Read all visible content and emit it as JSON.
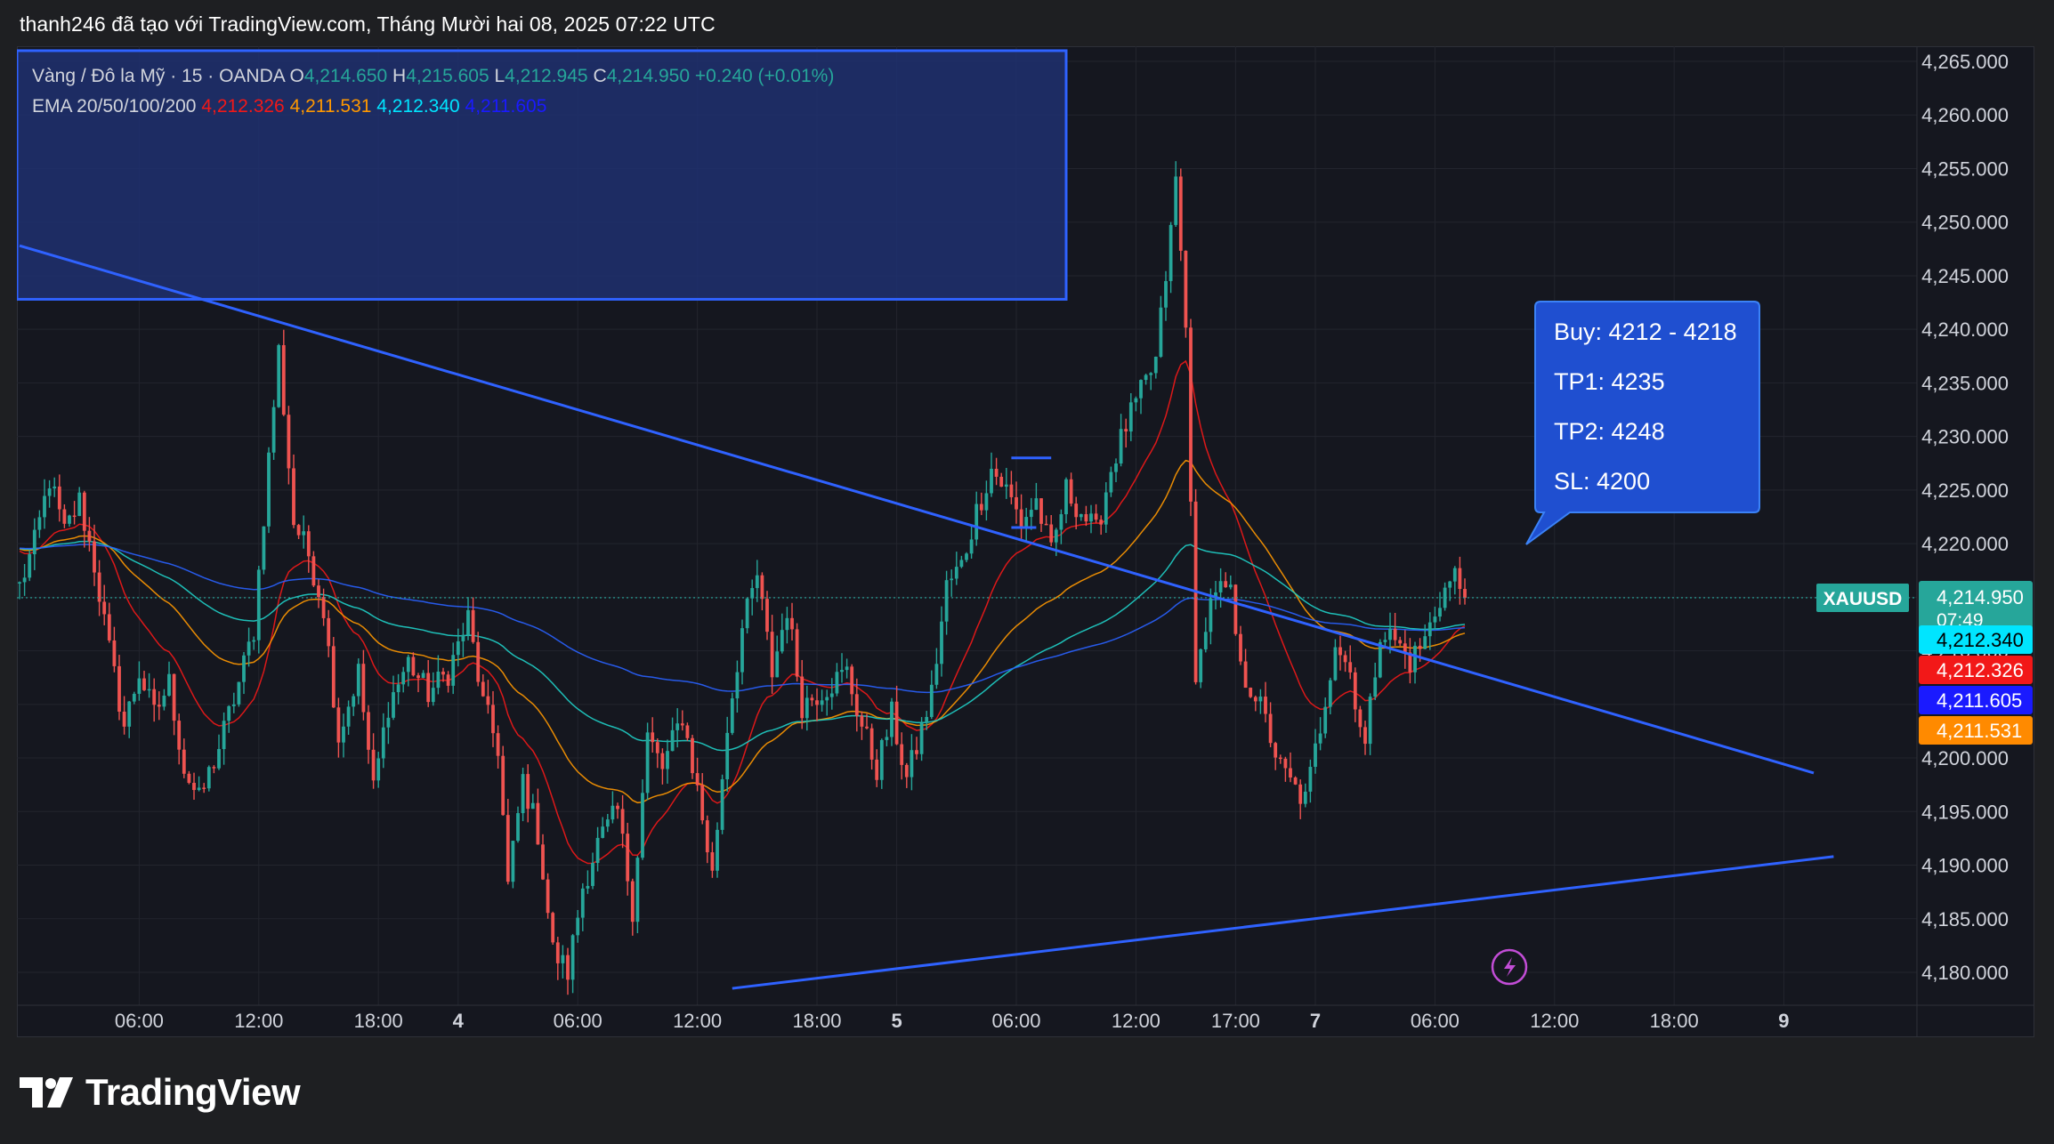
{
  "header": {
    "credit": "thanh246 đã tạo với TradingView.com, Tháng Mười hai 08, 2025 07:22 UTC"
  },
  "legend": {
    "symbol_desc": "Vàng / Đô la Mỹ · 15 · OANDA",
    "o_label": "O",
    "o_value": "4,214.650",
    "h_label": "H",
    "h_value": "4,215.605",
    "l_label": "L",
    "l_value": "4,212.945",
    "c_label": "C",
    "c_value": "4,214.950",
    "change": "+0.240 (+0.01%)",
    "ema_label": "EMA 20/50/100/200",
    "ema_values": [
      "4,212.326",
      "4,211.531",
      "4,212.340",
      "4,211.605"
    ]
  },
  "callout": {
    "lines": [
      "Buy: 4212 - 4218",
      "TP1: 4235",
      "TP2: 4248",
      "SL: 4200"
    ]
  },
  "price_tags": {
    "symbol": "XAUUSD",
    "last_price": "4,214.950",
    "countdown": "07:49",
    "ema_tags": [
      {
        "value": "4,212.340",
        "bg": "#00e5ff",
        "fg": "#000000"
      },
      {
        "value": "4,212.326",
        "bg": "#f21818",
        "fg": "#ffffff"
      },
      {
        "value": "4,211.605",
        "bg": "#1a1aff",
        "fg": "#ffffff"
      },
      {
        "value": "4,211.531",
        "bg": "#ff8a00",
        "fg": "#ffffff"
      }
    ]
  },
  "brand": {
    "name": "TradingView"
  },
  "colors": {
    "up": "#26a69a",
    "down": "#ef5350",
    "ema20": "#f21818",
    "ema50": "#ff9800",
    "ema100": "#1fd0c8",
    "ema200": "#2962ff",
    "drawing": "#2f62ff",
    "zone_fill": "#1e3070"
  },
  "chart_data": {
    "type": "candlestick",
    "symbol": "XAUUSD",
    "interval": "15",
    "ylim": [
      4178,
      4266
    ],
    "y_ticks": [
      "4,265.000",
      "4,260.000",
      "4,255.000",
      "4,250.000",
      "4,245.000",
      "4,240.000",
      "4,235.000",
      "4,230.000",
      "4,225.000",
      "4,220.000",
      "4,215.000",
      "4,210.000",
      "4,205.000",
      "4,200.000",
      "4,195.000",
      "4,190.000",
      "4,185.000",
      "4,180.000"
    ],
    "y_tick_values": [
      4265,
      4260,
      4255,
      4250,
      4245,
      4240,
      4235,
      4230,
      4225,
      4220,
      4215,
      4210,
      4205,
      4200,
      4195,
      4190,
      4185,
      4180
    ],
    "x_ticks": [
      "06:00",
      "12:00",
      "18:00",
      "4",
      "06:00",
      "12:00",
      "18:00",
      "5",
      "06:00",
      "12:00",
      "17:00",
      "7",
      "06:00",
      "12:00",
      "18:00",
      "9"
    ],
    "x_tick_index": [
      24,
      48,
      72,
      88,
      112,
      136,
      160,
      176,
      200,
      224,
      244,
      260,
      284,
      308,
      332,
      354
    ],
    "last_price": 4214.95,
    "price_path": [
      [
        0,
        4216
      ],
      [
        3,
        4220
      ],
      [
        6,
        4226
      ],
      [
        9,
        4221
      ],
      [
        12,
        4224
      ],
      [
        15,
        4218
      ],
      [
        18,
        4210
      ],
      [
        21,
        4203
      ],
      [
        24,
        4208
      ],
      [
        27,
        4204
      ],
      [
        30,
        4207
      ],
      [
        33,
        4199
      ],
      [
        36,
        4196
      ],
      [
        40,
        4201
      ],
      [
        44,
        4207
      ],
      [
        47,
        4212
      ],
      [
        50,
        4228
      ],
      [
        52,
        4238
      ],
      [
        55,
        4222
      ],
      [
        58,
        4219
      ],
      [
        61,
        4214
      ],
      [
        64,
        4202
      ],
      [
        68,
        4208
      ],
      [
        71,
        4197
      ],
      [
        74,
        4205
      ],
      [
        78,
        4209
      ],
      [
        82,
        4206
      ],
      [
        86,
        4208
      ],
      [
        90,
        4213
      ],
      [
        93,
        4205
      ],
      [
        96,
        4201
      ],
      [
        98,
        4188
      ],
      [
        101,
        4198
      ],
      [
        104,
        4193
      ],
      [
        107,
        4182
      ],
      [
        110,
        4180
      ],
      [
        113,
        4188
      ],
      [
        116,
        4192
      ],
      [
        120,
        4195
      ],
      [
        123,
        4186
      ],
      [
        126,
        4202
      ],
      [
        129,
        4199
      ],
      [
        133,
        4204
      ],
      [
        136,
        4197
      ],
      [
        139,
        4189
      ],
      [
        142,
        4203
      ],
      [
        145,
        4212
      ],
      [
        148,
        4217
      ],
      [
        151,
        4208
      ],
      [
        154,
        4214
      ],
      [
        157,
        4205
      ],
      [
        160,
        4206
      ],
      [
        163,
        4207
      ],
      [
        166,
        4208
      ],
      [
        169,
        4203
      ],
      [
        172,
        4199
      ],
      [
        175,
        4204
      ],
      [
        178,
        4198
      ],
      [
        180,
        4201
      ],
      [
        183,
        4206
      ],
      [
        186,
        4216
      ],
      [
        189,
        4218
      ],
      [
        192,
        4223
      ],
      [
        195,
        4227
      ],
      [
        198,
        4225
      ],
      [
        201,
        4222
      ],
      [
        204,
        4224
      ],
      [
        207,
        4219
      ],
      [
        210,
        4225
      ],
      [
        213,
        4223
      ],
      [
        216,
        4221
      ],
      [
        219,
        4227
      ],
      [
        222,
        4231
      ],
      [
        225,
        4234
      ],
      [
        228,
        4237
      ],
      [
        231,
        4249
      ],
      [
        232,
        4254
      ],
      [
        234,
        4240
      ],
      [
        235,
        4225
      ],
      [
        236,
        4206
      ],
      [
        238,
        4213
      ],
      [
        240,
        4216
      ],
      [
        243,
        4215
      ],
      [
        245,
        4208
      ],
      [
        248,
        4206
      ],
      [
        251,
        4202
      ],
      [
        253,
        4199
      ],
      [
        256,
        4197
      ],
      [
        258,
        4196
      ],
      [
        261,
        4203
      ],
      [
        264,
        4211
      ],
      [
        267,
        4208
      ],
      [
        270,
        4201
      ],
      [
        273,
        4212
      ],
      [
        276,
        4211
      ],
      [
        279,
        4209
      ],
      [
        282,
        4211
      ],
      [
        285,
        4215
      ],
      [
        288,
        4217
      ],
      [
        290,
        4214.95
      ]
    ],
    "ema_series": [
      {
        "name": "EMA 20",
        "value": 4212.326
      },
      {
        "name": "EMA 50",
        "value": 4211.531
      },
      {
        "name": "EMA 100",
        "value": 4212.34
      },
      {
        "name": "EMA 200",
        "value": 4211.605
      }
    ],
    "drawings": {
      "supply_zone": {
        "x_from": 0,
        "x_to": 210,
        "y_from": 4242.8,
        "y_to": 4266
      },
      "descending_trendline": {
        "points": [
          [
            0,
            4247.8
          ],
          [
            360,
            4198.6
          ]
        ]
      },
      "ascending_trendline": {
        "points": [
          [
            143,
            4178.5
          ],
          [
            364,
            4190.8
          ]
        ]
      }
    }
  }
}
